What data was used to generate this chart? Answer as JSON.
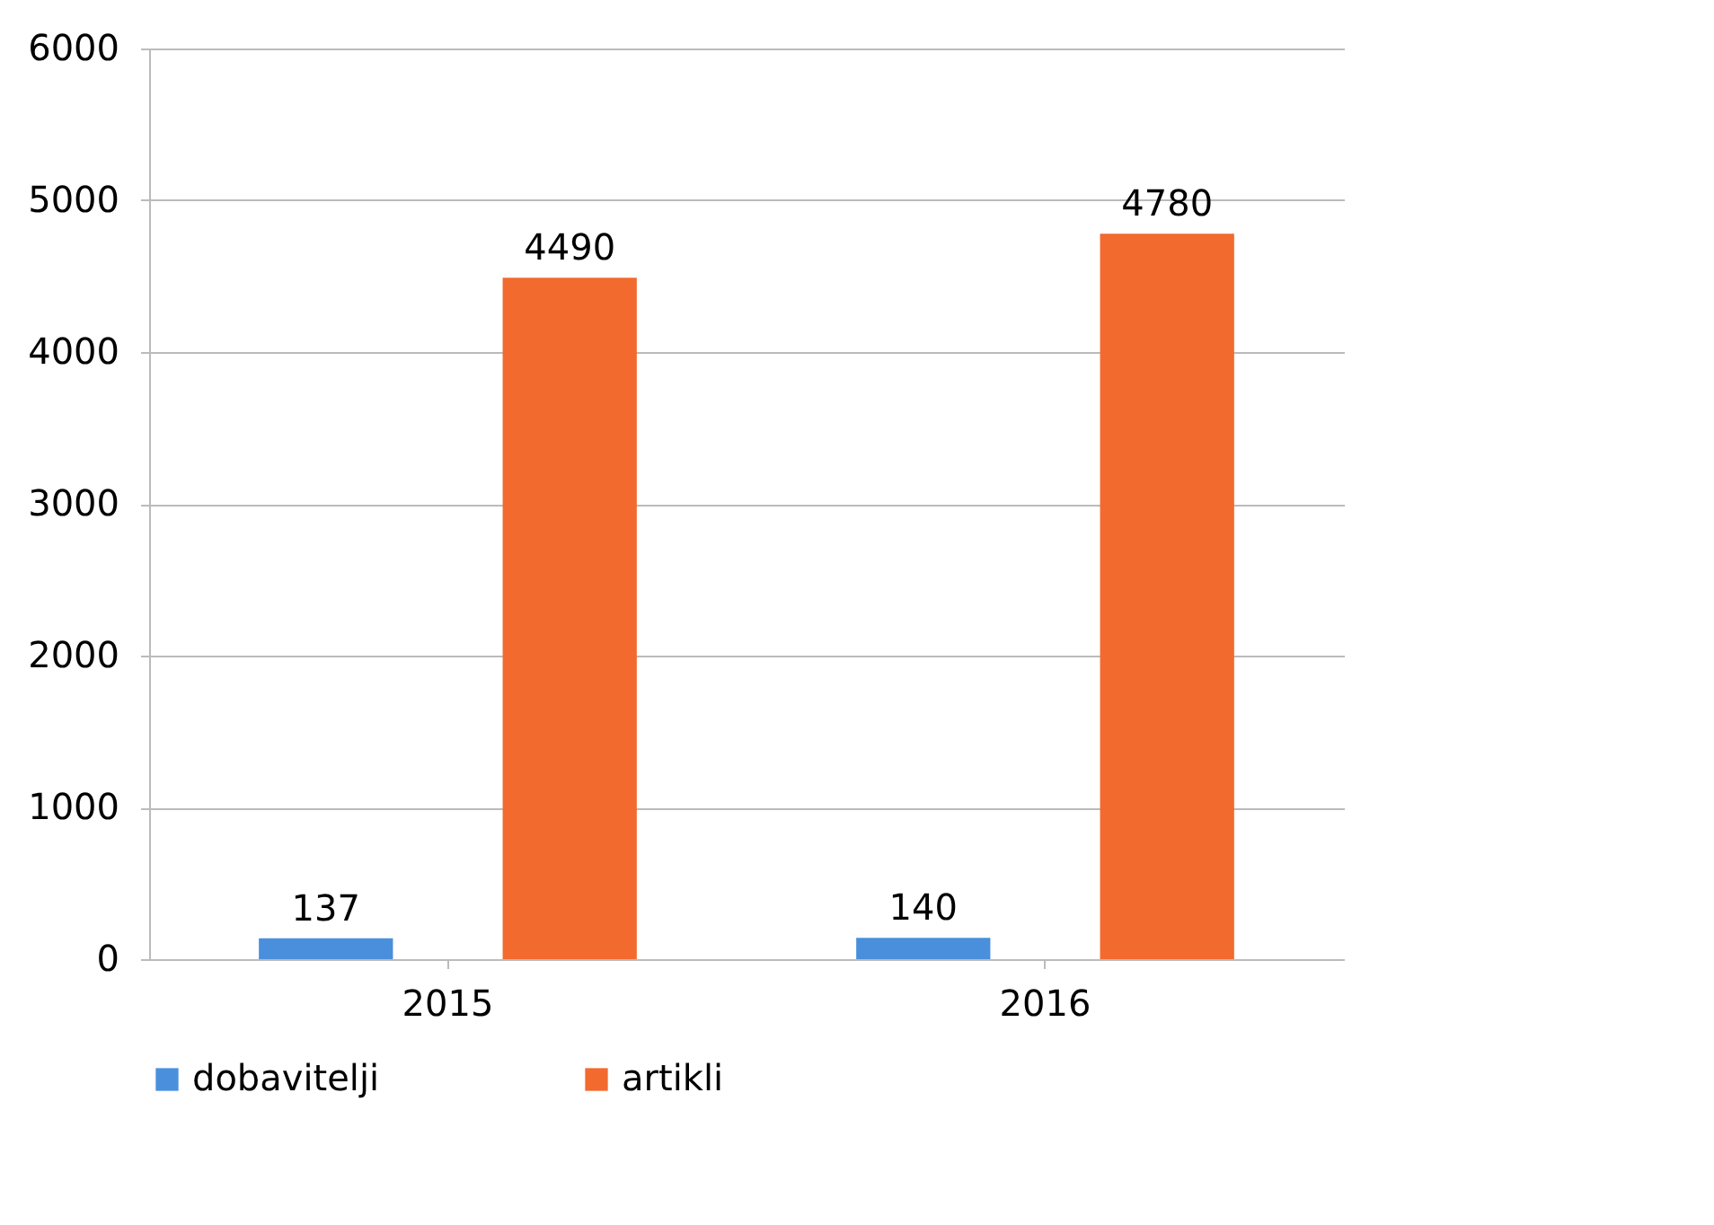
{
  "chart_data": {
    "type": "bar",
    "categories": [
      "2015",
      "2016"
    ],
    "series": [
      {
        "name": "dobavitelji",
        "color": "#4a8fdc",
        "values": [
          137,
          140
        ]
      },
      {
        "name": "artikli",
        "color": "#f26a2e",
        "values": [
          4490,
          4780
        ]
      }
    ],
    "ylim": [
      0,
      6000
    ],
    "yticks": [
      0,
      1000,
      2000,
      3000,
      4000,
      5000,
      6000
    ],
    "grid": "y",
    "legend": "bottom",
    "data_labels": true
  }
}
